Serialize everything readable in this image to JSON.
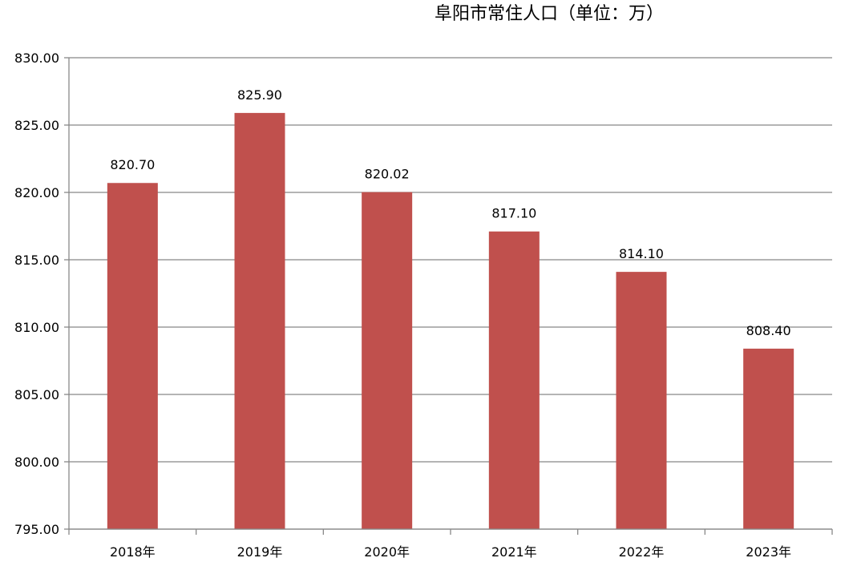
{
  "chart_data": {
    "type": "bar",
    "title": "阜阳市常住人口（单位：万）",
    "categories": [
      "2018年",
      "2019年",
      "2020年",
      "2021年",
      "2022年",
      "2023年"
    ],
    "values": [
      820.7,
      825.9,
      820.02,
      817.1,
      814.1,
      808.4
    ],
    "data_labels": [
      "820.70",
      "825.90",
      "820.02",
      "817.10",
      "814.10",
      "808.40"
    ],
    "ylim": [
      795,
      830
    ],
    "y_ticks": [
      795,
      800,
      805,
      810,
      815,
      820,
      825,
      830
    ],
    "y_tick_labels": [
      "795.00",
      "800.00",
      "805.00",
      "810.00",
      "815.00",
      "820.00",
      "825.00",
      "830.00"
    ],
    "xlabel": "",
    "ylabel": "",
    "grid": true,
    "legend": "none",
    "colors": {
      "bar": "#c0504d",
      "grid": "#888888",
      "axis": "#888888"
    }
  }
}
